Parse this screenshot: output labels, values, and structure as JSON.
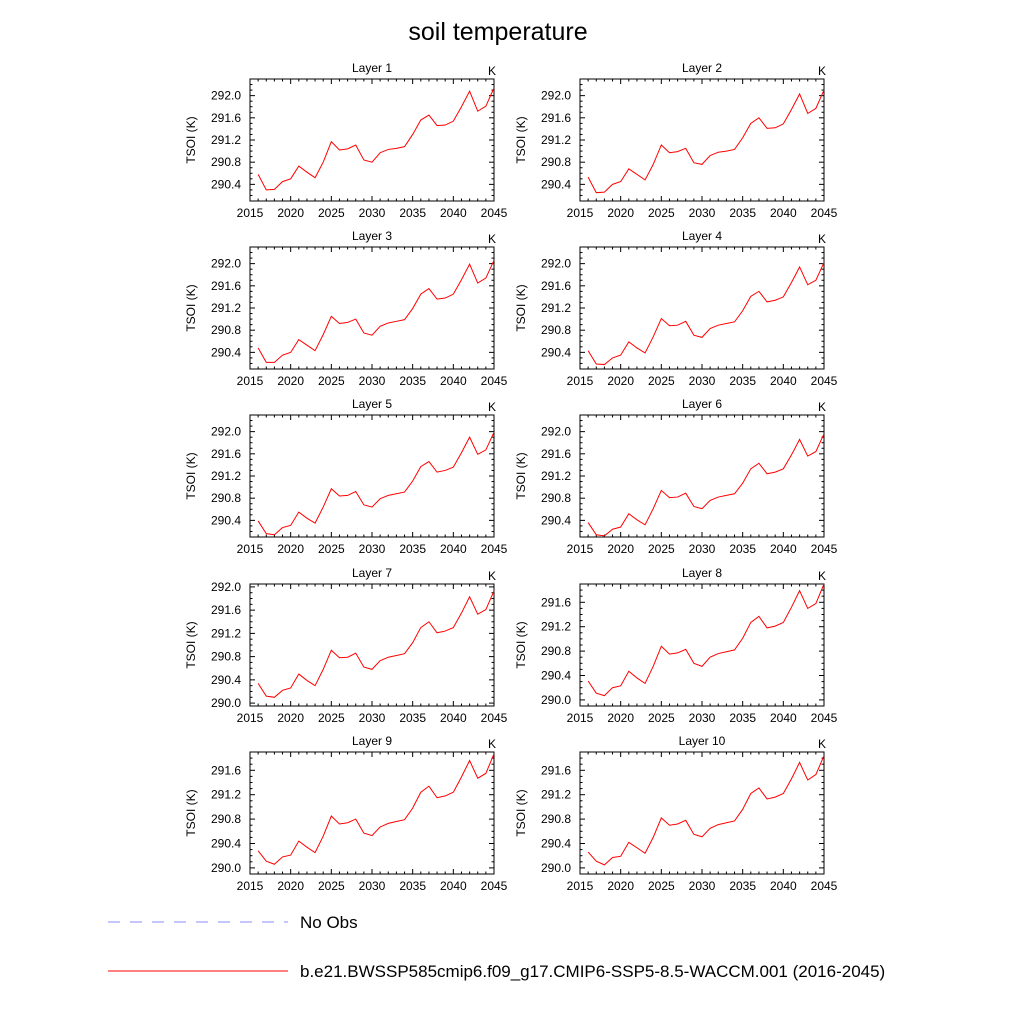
{
  "figure": {
    "title": "soil temperature",
    "legend": [
      {
        "label": "No Obs",
        "color": "#8c8cff",
        "dash": true
      },
      {
        "label": "b.e21.BWSSP585cmip6.f09_g17.CMIP6-SSP5-8.5-WACCM.001 (2016-2045)",
        "color": "#ff0000",
        "dash": false
      }
    ]
  },
  "chart_data": [
    {
      "type": "line",
      "title": "Layer 1",
      "unit": "K",
      "ylabel": "TSOI  (K)",
      "xlim": [
        2015,
        2045
      ],
      "ylim": [
        290.1,
        292.3
      ],
      "xticks": [
        2015,
        2020,
        2025,
        2030,
        2035,
        2040,
        2045
      ],
      "yticks": [
        "290.4",
        "290.8",
        "291.2",
        "291.6",
        "292.0"
      ],
      "x": [
        2016,
        2017,
        2018,
        2019,
        2020,
        2021,
        2022,
        2023,
        2024,
        2025,
        2026,
        2027,
        2028,
        2029,
        2030,
        2031,
        2032,
        2033,
        2034,
        2035,
        2036,
        2037,
        2038,
        2039,
        2040,
        2041,
        2042,
        2043,
        2044,
        2045
      ],
      "series": [
        {
          "color": "#ff0000",
          "values": [
            290.58,
            290.3,
            290.31,
            290.45,
            290.5,
            290.73,
            290.62,
            290.52,
            290.8,
            291.17,
            291.02,
            291.04,
            291.11,
            290.84,
            290.8,
            290.97,
            291.03,
            291.05,
            291.08,
            291.3,
            291.56,
            291.65,
            291.46,
            291.47,
            291.54,
            291.8,
            292.08,
            291.72,
            291.81,
            292.14
          ]
        }
      ]
    },
    {
      "type": "line",
      "title": "Layer 2",
      "unit": "K",
      "ylabel": "TSOI  (K)",
      "xlim": [
        2015,
        2045
      ],
      "ylim": [
        290.1,
        292.3
      ],
      "xticks": [
        2015,
        2020,
        2025,
        2030,
        2035,
        2040,
        2045
      ],
      "yticks": [
        "290.4",
        "290.8",
        "291.2",
        "291.6",
        "292.0"
      ],
      "x": [
        2016,
        2017,
        2018,
        2019,
        2020,
        2021,
        2022,
        2023,
        2024,
        2025,
        2026,
        2027,
        2028,
        2029,
        2030,
        2031,
        2032,
        2033,
        2034,
        2035,
        2036,
        2037,
        2038,
        2039,
        2040,
        2041,
        2042,
        2043,
        2044,
        2045
      ],
      "series": [
        {
          "color": "#ff0000",
          "values": [
            290.53,
            290.25,
            290.26,
            290.4,
            290.45,
            290.68,
            290.58,
            290.48,
            290.76,
            291.11,
            290.97,
            290.99,
            291.05,
            290.79,
            290.76,
            290.92,
            290.98,
            291.0,
            291.03,
            291.24,
            291.5,
            291.6,
            291.41,
            291.42,
            291.49,
            291.75,
            292.03,
            291.68,
            291.77,
            292.1
          ]
        }
      ]
    },
    {
      "type": "line",
      "title": "Layer 3",
      "unit": "K",
      "ylabel": "TSOI  (K)",
      "xlim": [
        2015,
        2045
      ],
      "ylim": [
        290.1,
        292.3
      ],
      "xticks": [
        2015,
        2020,
        2025,
        2030,
        2035,
        2040,
        2045
      ],
      "yticks": [
        "290.4",
        "290.8",
        "291.2",
        "291.6",
        "292.0"
      ],
      "x": [
        2016,
        2017,
        2018,
        2019,
        2020,
        2021,
        2022,
        2023,
        2024,
        2025,
        2026,
        2027,
        2028,
        2029,
        2030,
        2031,
        2032,
        2033,
        2034,
        2035,
        2036,
        2037,
        2038,
        2039,
        2040,
        2041,
        2042,
        2043,
        2044,
        2045
      ],
      "series": [
        {
          "color": "#ff0000",
          "values": [
            290.48,
            290.22,
            290.22,
            290.35,
            290.4,
            290.63,
            290.53,
            290.43,
            290.72,
            291.05,
            290.92,
            290.94,
            291.0,
            290.75,
            290.71,
            290.87,
            290.93,
            290.96,
            290.99,
            291.19,
            291.45,
            291.55,
            291.36,
            291.38,
            291.45,
            291.71,
            291.99,
            291.65,
            291.74,
            292.06
          ]
        }
      ]
    },
    {
      "type": "line",
      "title": "Layer 4",
      "unit": "K",
      "ylabel": "TSOI  (K)",
      "xlim": [
        2015,
        2045
      ],
      "ylim": [
        290.1,
        292.3
      ],
      "xticks": [
        2015,
        2020,
        2025,
        2030,
        2035,
        2040,
        2045
      ],
      "yticks": [
        "290.4",
        "290.8",
        "291.2",
        "291.6",
        "292.0"
      ],
      "x": [
        2016,
        2017,
        2018,
        2019,
        2020,
        2021,
        2022,
        2023,
        2024,
        2025,
        2026,
        2027,
        2028,
        2029,
        2030,
        2031,
        2032,
        2033,
        2034,
        2035,
        2036,
        2037,
        2038,
        2039,
        2040,
        2041,
        2042,
        2043,
        2044,
        2045
      ],
      "series": [
        {
          "color": "#ff0000",
          "values": [
            290.43,
            290.19,
            290.18,
            290.3,
            290.35,
            290.59,
            290.48,
            290.39,
            290.68,
            291.01,
            290.88,
            290.89,
            290.96,
            290.71,
            290.67,
            290.83,
            290.89,
            290.92,
            290.95,
            291.15,
            291.41,
            291.5,
            291.31,
            291.34,
            291.4,
            291.66,
            291.94,
            291.62,
            291.7,
            292.02
          ]
        }
      ]
    },
    {
      "type": "line",
      "title": "Layer 5",
      "unit": "K",
      "ylabel": "TSOI  (K)",
      "xlim": [
        2015,
        2045
      ],
      "ylim": [
        290.1,
        292.3
      ],
      "xticks": [
        2015,
        2020,
        2025,
        2030,
        2035,
        2040,
        2045
      ],
      "yticks": [
        "290.4",
        "290.8",
        "291.2",
        "291.6",
        "292.0"
      ],
      "x": [
        2016,
        2017,
        2018,
        2019,
        2020,
        2021,
        2022,
        2023,
        2024,
        2025,
        2026,
        2027,
        2028,
        2029,
        2030,
        2031,
        2032,
        2033,
        2034,
        2035,
        2036,
        2037,
        2038,
        2039,
        2040,
        2041,
        2042,
        2043,
        2044,
        2045
      ],
      "series": [
        {
          "color": "#ff0000",
          "values": [
            290.39,
            290.16,
            290.14,
            290.27,
            290.31,
            290.55,
            290.44,
            290.35,
            290.64,
            290.97,
            290.84,
            290.85,
            290.92,
            290.68,
            290.64,
            290.79,
            290.85,
            290.88,
            290.91,
            291.11,
            291.37,
            291.46,
            291.27,
            291.3,
            291.36,
            291.62,
            291.9,
            291.59,
            291.67,
            291.99
          ]
        }
      ]
    },
    {
      "type": "line",
      "title": "Layer 6",
      "unit": "K",
      "ylabel": "TSOI  (K)",
      "xlim": [
        2015,
        2045
      ],
      "ylim": [
        290.1,
        292.3
      ],
      "xticks": [
        2015,
        2020,
        2025,
        2030,
        2035,
        2040,
        2045
      ],
      "yticks": [
        "290.4",
        "290.8",
        "291.2",
        "291.6",
        "292.0"
      ],
      "x": [
        2016,
        2017,
        2018,
        2019,
        2020,
        2021,
        2022,
        2023,
        2024,
        2025,
        2026,
        2027,
        2028,
        2029,
        2030,
        2031,
        2032,
        2033,
        2034,
        2035,
        2036,
        2037,
        2038,
        2039,
        2040,
        2041,
        2042,
        2043,
        2044,
        2045
      ],
      "series": [
        {
          "color": "#ff0000",
          "values": [
            290.36,
            290.14,
            290.12,
            290.24,
            290.28,
            290.52,
            290.41,
            290.32,
            290.61,
            290.94,
            290.81,
            290.82,
            290.89,
            290.65,
            290.61,
            290.76,
            290.82,
            290.85,
            290.88,
            291.07,
            291.33,
            291.43,
            291.24,
            291.27,
            291.33,
            291.58,
            291.86,
            291.56,
            291.64,
            291.96
          ]
        }
      ]
    },
    {
      "type": "line",
      "title": "Layer 7",
      "unit": "K",
      "ylabel": "TSOI  (K)",
      "xlim": [
        2015,
        2045
      ],
      "ylim": [
        289.95,
        292.05
      ],
      "xticks": [
        2015,
        2020,
        2025,
        2030,
        2035,
        2040,
        2045
      ],
      "yticks": [
        "290.0",
        "290.4",
        "290.8",
        "291.2",
        "291.6",
        "292.0"
      ],
      "x": [
        2016,
        2017,
        2018,
        2019,
        2020,
        2021,
        2022,
        2023,
        2024,
        2025,
        2026,
        2027,
        2028,
        2029,
        2030,
        2031,
        2032,
        2033,
        2034,
        2035,
        2036,
        2037,
        2038,
        2039,
        2040,
        2041,
        2042,
        2043,
        2044,
        2045
      ],
      "series": [
        {
          "color": "#ff0000",
          "values": [
            290.34,
            290.12,
            290.1,
            290.22,
            290.26,
            290.5,
            290.39,
            290.3,
            290.58,
            290.91,
            290.78,
            290.79,
            290.86,
            290.62,
            290.58,
            290.73,
            290.79,
            290.82,
            290.85,
            291.04,
            291.3,
            291.4,
            291.21,
            291.24,
            291.3,
            291.55,
            291.83,
            291.53,
            291.61,
            291.93
          ]
        }
      ]
    },
    {
      "type": "line",
      "title": "Layer 8",
      "unit": "K",
      "ylabel": "TSOI  (K)",
      "xlim": [
        2015,
        2045
      ],
      "ylim": [
        289.9,
        291.9
      ],
      "xticks": [
        2015,
        2020,
        2025,
        2030,
        2035,
        2040,
        2045
      ],
      "yticks": [
        "290.0",
        "290.4",
        "290.8",
        "291.2",
        "291.6"
      ],
      "x": [
        2016,
        2017,
        2018,
        2019,
        2020,
        2021,
        2022,
        2023,
        2024,
        2025,
        2026,
        2027,
        2028,
        2029,
        2030,
        2031,
        2032,
        2033,
        2034,
        2035,
        2036,
        2037,
        2038,
        2039,
        2040,
        2041,
        2042,
        2043,
        2044,
        2045
      ],
      "series": [
        {
          "color": "#ff0000",
          "values": [
            290.31,
            290.11,
            290.07,
            290.2,
            290.23,
            290.47,
            290.36,
            290.27,
            290.55,
            290.88,
            290.75,
            290.77,
            290.83,
            290.6,
            290.55,
            290.7,
            290.76,
            290.79,
            290.82,
            291.01,
            291.27,
            291.37,
            291.18,
            291.21,
            291.27,
            291.52,
            291.79,
            291.5,
            291.58,
            291.9
          ]
        }
      ]
    },
    {
      "type": "line",
      "title": "Layer 9",
      "unit": "K",
      "ylabel": "TSOI  (K)",
      "xlim": [
        2015,
        2045
      ],
      "ylim": [
        289.9,
        291.9
      ],
      "xticks": [
        2015,
        2020,
        2025,
        2030,
        2035,
        2040,
        2045
      ],
      "yticks": [
        "290.0",
        "290.4",
        "290.8",
        "291.2",
        "291.6"
      ],
      "x": [
        2016,
        2017,
        2018,
        2019,
        2020,
        2021,
        2022,
        2023,
        2024,
        2025,
        2026,
        2027,
        2028,
        2029,
        2030,
        2031,
        2032,
        2033,
        2034,
        2035,
        2036,
        2037,
        2038,
        2039,
        2040,
        2041,
        2042,
        2043,
        2044,
        2045
      ],
      "series": [
        {
          "color": "#ff0000",
          "values": [
            290.28,
            290.11,
            290.06,
            290.18,
            290.21,
            290.44,
            290.34,
            290.25,
            290.52,
            290.85,
            290.72,
            290.74,
            290.8,
            290.57,
            290.53,
            290.67,
            290.73,
            290.76,
            290.79,
            290.98,
            291.24,
            291.34,
            291.15,
            291.18,
            291.24,
            291.49,
            291.76,
            291.47,
            291.55,
            291.87
          ]
        }
      ]
    },
    {
      "type": "line",
      "title": "Layer 10",
      "unit": "K",
      "ylabel": "TSOI  (K)",
      "xlim": [
        2015,
        2045
      ],
      "ylim": [
        289.9,
        291.9
      ],
      "xticks": [
        2015,
        2020,
        2025,
        2030,
        2035,
        2040,
        2045
      ],
      "yticks": [
        "290.0",
        "290.4",
        "290.8",
        "291.2",
        "291.6"
      ],
      "x": [
        2016,
        2017,
        2018,
        2019,
        2020,
        2021,
        2022,
        2023,
        2024,
        2025,
        2026,
        2027,
        2028,
        2029,
        2030,
        2031,
        2032,
        2033,
        2034,
        2035,
        2036,
        2037,
        2038,
        2039,
        2040,
        2041,
        2042,
        2043,
        2044,
        2045
      ],
      "series": [
        {
          "color": "#ff0000",
          "values": [
            290.26,
            290.11,
            290.05,
            290.17,
            290.19,
            290.42,
            290.33,
            290.24,
            290.5,
            290.82,
            290.7,
            290.72,
            290.78,
            290.55,
            290.51,
            290.65,
            290.71,
            290.74,
            290.77,
            290.96,
            291.22,
            291.31,
            291.13,
            291.16,
            291.22,
            291.46,
            291.73,
            291.44,
            291.53,
            291.84
          ]
        }
      ]
    }
  ]
}
